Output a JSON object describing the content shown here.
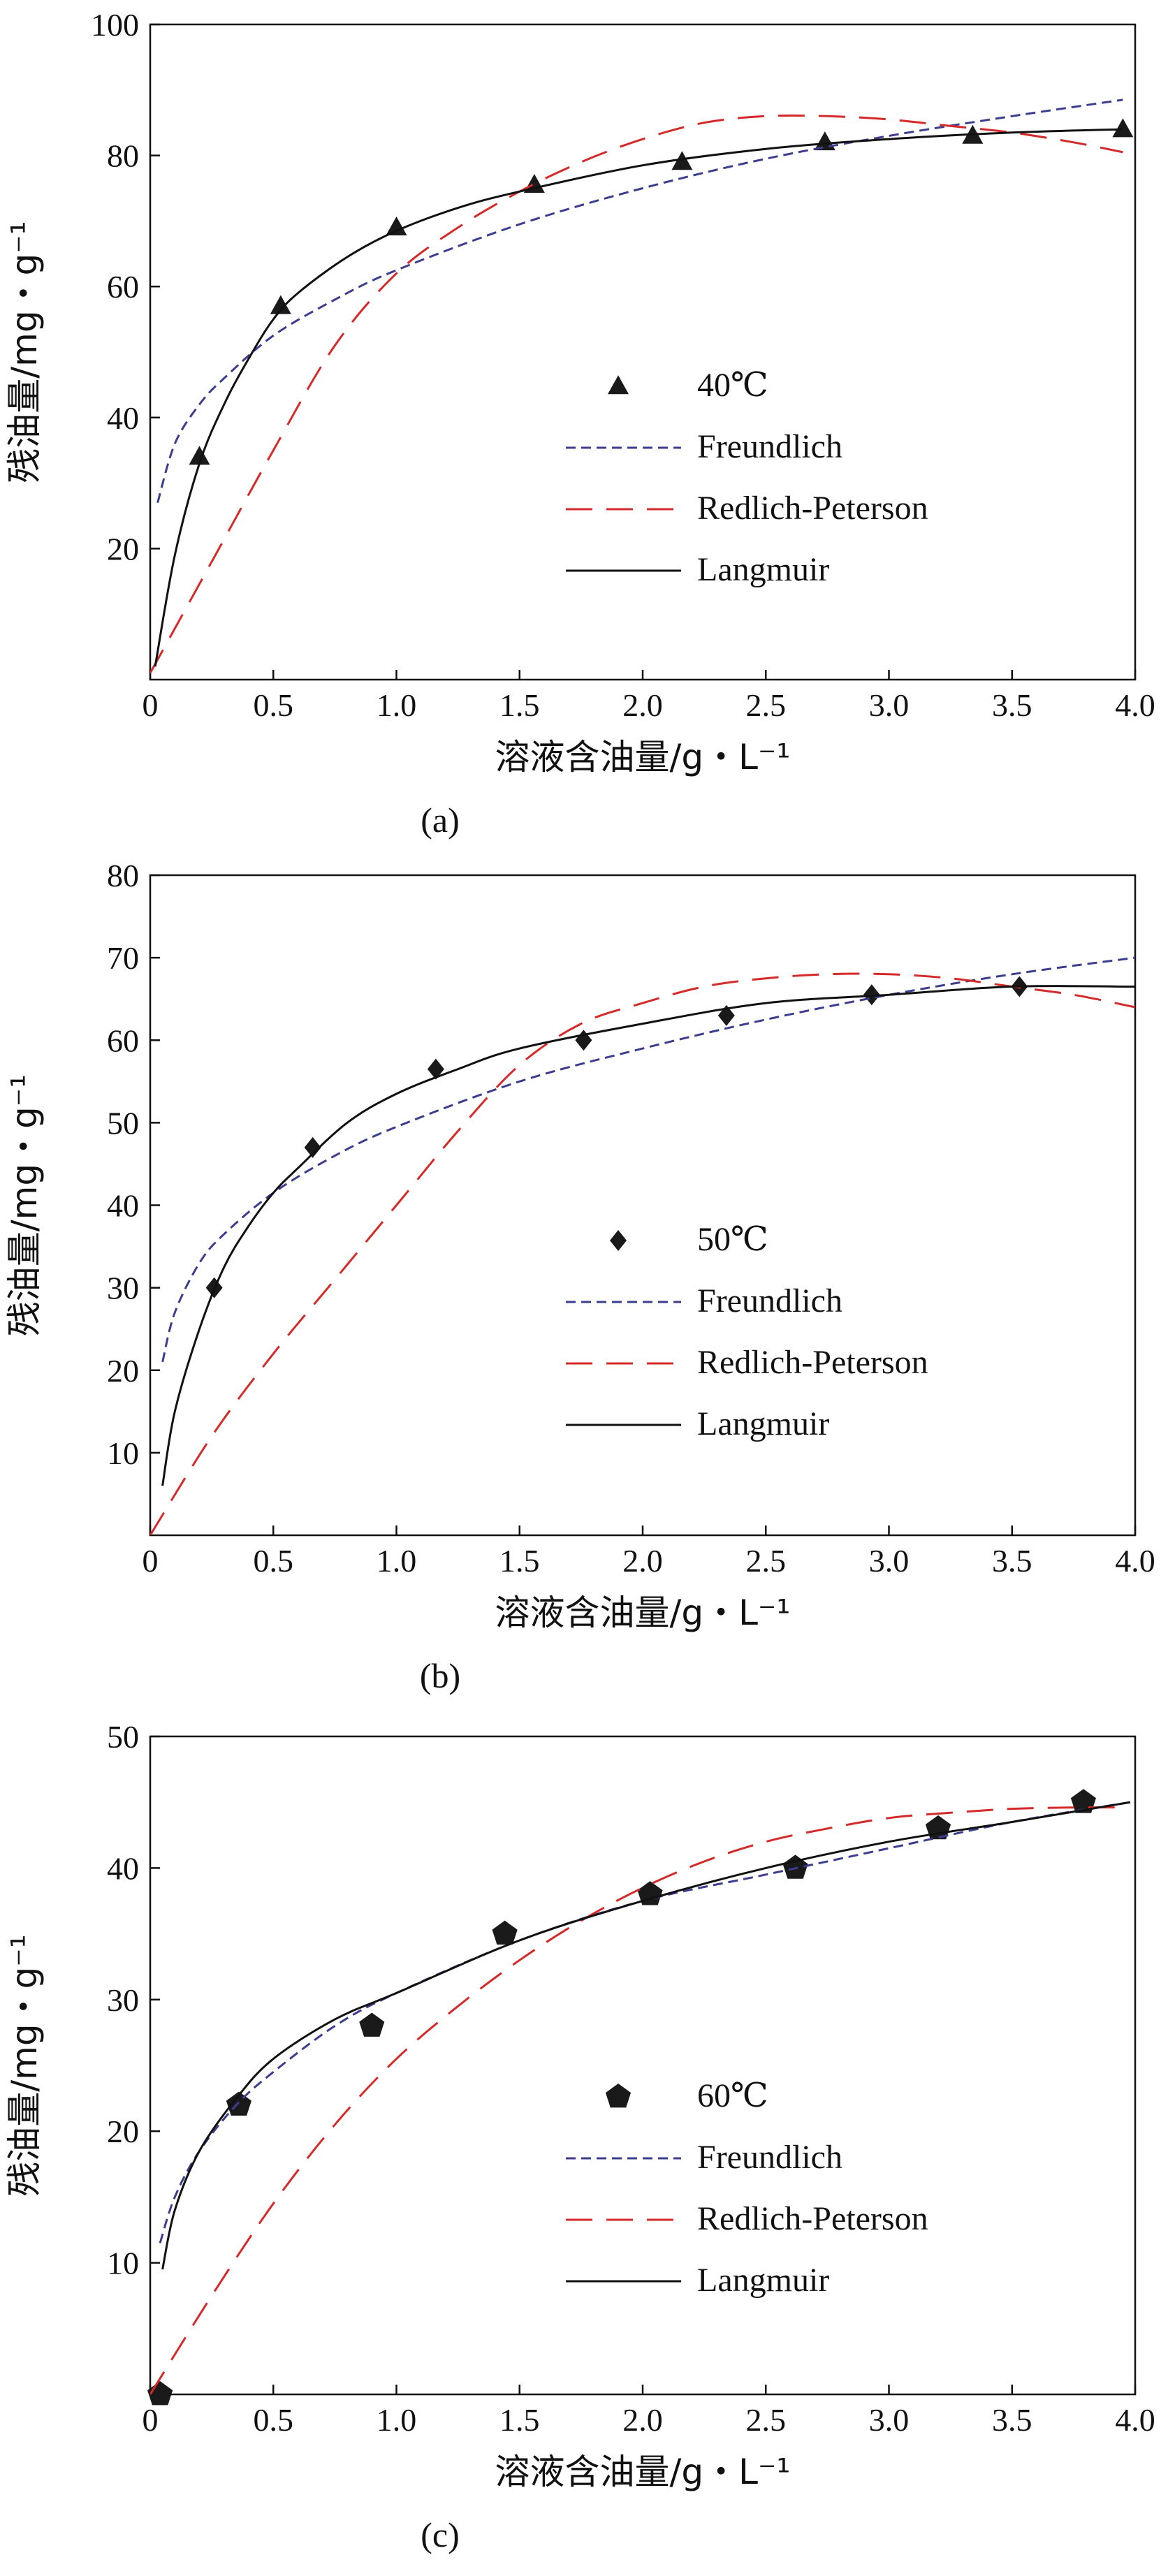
{
  "colors": {
    "freundlich": "#3d3d8f",
    "redlich_peterson": "#d42a2a",
    "langmuir": "#111111",
    "marker": "#1a1a1a",
    "axis": "#111111"
  },
  "chart_data": [
    {
      "type": "scatter",
      "panel_label": "(a)",
      "xlabel": "溶液含油量/g・L⁻¹",
      "ylabel": "残油量/mg・g⁻¹",
      "xlim": [
        0,
        4.0
      ],
      "ylim": [
        0,
        100
      ],
      "xticks": [
        0,
        0.5,
        1.0,
        1.5,
        2.0,
        2.5,
        3.0,
        3.5,
        4.0
      ],
      "xtick_labels": [
        "0",
        "0.5",
        "1.0",
        "1.5",
        "2.0",
        "2.5",
        "3.0",
        "3.5",
        "4.0"
      ],
      "yticks": [
        20,
        40,
        60,
        80,
        100
      ],
      "ytick_labels": [
        "20",
        "40",
        "60",
        "80",
        "100"
      ],
      "grid": false,
      "legend_position": "center-right",
      "marker_shape": "triangle",
      "series": [
        {
          "name": "40℃",
          "kind": "points",
          "x": [
            0.2,
            0.53,
            1.0,
            1.56,
            2.16,
            2.74,
            3.34,
            3.95
          ],
          "y": [
            34,
            57,
            69,
            75.5,
            79,
            82,
            83,
            84
          ]
        },
        {
          "name": "Freundlich",
          "kind": "dashed",
          "x": [
            0.03,
            0.1,
            0.2,
            0.3,
            0.5,
            0.75,
            1.0,
            1.5,
            2.0,
            2.5,
            3.0,
            3.5,
            3.95
          ],
          "y": [
            27,
            36,
            42,
            46,
            52.5,
            58,
            62.5,
            69.5,
            75,
            79.5,
            83,
            86,
            88.5
          ]
        },
        {
          "name": "Redlich-Peterson",
          "kind": "longdash",
          "x": [
            0.0,
            0.25,
            0.5,
            0.75,
            1.0,
            1.25,
            1.5,
            1.75,
            2.0,
            2.25,
            2.5,
            2.75,
            3.0,
            3.25,
            3.5,
            3.75,
            3.95
          ],
          "y": [
            1,
            18,
            35,
            51,
            62,
            69,
            74.5,
            79,
            82.5,
            85,
            86,
            86,
            85.5,
            84.5,
            83.5,
            82,
            80.5
          ]
        },
        {
          "name": "Langmuir",
          "kind": "solid",
          "x": [
            0.02,
            0.1,
            0.2,
            0.3,
            0.4,
            0.5,
            0.6,
            0.8,
            1.0,
            1.25,
            1.5,
            2.0,
            2.5,
            3.0,
            3.5,
            3.95
          ],
          "y": [
            2,
            19,
            33,
            42,
            49,
            55,
            59,
            64.5,
            68.5,
            72,
            74.5,
            78.5,
            81,
            82.5,
            83.5,
            84
          ]
        }
      ]
    },
    {
      "type": "scatter",
      "panel_label": "(b)",
      "xlabel": "溶液含油量/g・L⁻¹",
      "ylabel": "残油量/mg・g⁻¹",
      "xlim": [
        0,
        4.0
      ],
      "ylim": [
        0,
        80
      ],
      "xticks": [
        0,
        0.5,
        1.0,
        1.5,
        2.0,
        2.5,
        3.0,
        3.5,
        4.0
      ],
      "xtick_labels": [
        "0",
        "0.5",
        "1.0",
        "1.5",
        "2.0",
        "2.5",
        "3.0",
        "3.5",
        "4.0"
      ],
      "yticks": [
        10,
        20,
        30,
        40,
        50,
        60,
        70,
        80
      ],
      "ytick_labels": [
        "10",
        "20",
        "30",
        "40",
        "50",
        "60",
        "70",
        "80"
      ],
      "grid": false,
      "legend_position": "center-right",
      "marker_shape": "diamond",
      "series": [
        {
          "name": "50℃",
          "kind": "points",
          "x": [
            0.26,
            0.66,
            1.16,
            1.76,
            2.34,
            2.93,
            3.53
          ],
          "y": [
            30,
            47,
            56.5,
            60,
            63,
            65.5,
            66.5
          ]
        },
        {
          "name": "Freundlich",
          "kind": "dashed",
          "x": [
            0.05,
            0.1,
            0.2,
            0.3,
            0.5,
            0.75,
            1.0,
            1.5,
            2.0,
            2.5,
            3.0,
            3.5,
            4.0
          ],
          "y": [
            21,
            27,
            33,
            36.5,
            41.5,
            46,
            49.5,
            55,
            59,
            62.5,
            65.5,
            68,
            70
          ]
        },
        {
          "name": "Redlich-Peterson",
          "kind": "longdash",
          "x": [
            0.0,
            0.25,
            0.5,
            0.75,
            1.0,
            1.25,
            1.5,
            1.75,
            2.0,
            2.25,
            2.5,
            2.75,
            3.0,
            3.25,
            3.5,
            3.75,
            4.0
          ],
          "y": [
            0,
            12,
            22,
            31,
            40,
            49,
            57,
            62,
            64.5,
            66.5,
            67.5,
            68,
            68,
            67.5,
            66.5,
            65.5,
            64
          ]
        },
        {
          "name": "Langmuir",
          "kind": "solid",
          "x": [
            0.05,
            0.1,
            0.2,
            0.3,
            0.4,
            0.5,
            0.6,
            0.8,
            1.0,
            1.25,
            1.5,
            2.0,
            2.5,
            3.0,
            3.5,
            4.0
          ],
          "y": [
            6,
            15,
            25,
            32.5,
            37.5,
            41.5,
            44.5,
            50,
            53.5,
            56.5,
            59,
            62,
            64.5,
            65.5,
            66.5,
            66.5
          ]
        }
      ]
    },
    {
      "type": "scatter",
      "panel_label": "(c)",
      "xlabel": "溶液含油量/g・L⁻¹",
      "ylabel": "残油量/mg・g⁻¹",
      "xlim": [
        0,
        4.0
      ],
      "ylim": [
        0,
        50
      ],
      "xticks": [
        0,
        0.5,
        1.0,
        1.5,
        2.0,
        2.5,
        3.0,
        3.5,
        4.0
      ],
      "xtick_labels": [
        "0",
        "0.5",
        "1.0",
        "1.5",
        "2.0",
        "2.5",
        "3.0",
        "3.5",
        "4.0"
      ],
      "yticks": [
        10,
        20,
        30,
        40,
        50
      ],
      "ytick_labels": [
        "10",
        "20",
        "30",
        "40",
        "50"
      ],
      "grid": false,
      "legend_position": "center-right",
      "marker_shape": "pentagon",
      "series": [
        {
          "name": "60℃",
          "kind": "points",
          "x": [
            0.04,
            0.36,
            0.9,
            1.44,
            2.03,
            2.62,
            3.2,
            3.79
          ],
          "y": [
            0,
            22,
            28,
            35,
            38,
            40,
            43,
            45
          ]
        },
        {
          "name": "Freundlich",
          "kind": "dashed",
          "x": [
            0.04,
            0.1,
            0.2,
            0.35,
            0.5,
            0.75,
            1.0,
            1.5,
            2.0,
            2.5,
            3.0,
            3.5,
            3.98
          ],
          "y": [
            11.5,
            15,
            18.5,
            22,
            24.5,
            28,
            30.5,
            34.5,
            37.5,
            39.5,
            41.5,
            43.5,
            45
          ]
        },
        {
          "name": "Redlich-Peterson",
          "kind": "longdash",
          "x": [
            0.0,
            0.25,
            0.5,
            0.75,
            1.0,
            1.25,
            1.5,
            1.75,
            2.0,
            2.25,
            2.5,
            2.75,
            3.0,
            3.25,
            3.5,
            3.75,
            3.95
          ],
          "y": [
            0,
            7.5,
            14.5,
            20.5,
            25.5,
            29.5,
            33,
            36,
            38.5,
            40.5,
            42,
            43,
            43.8,
            44.2,
            44.5,
            44.6,
            44.6
          ]
        },
        {
          "name": "Langmuir",
          "kind": "solid",
          "x": [
            0.05,
            0.1,
            0.2,
            0.35,
            0.5,
            0.75,
            1.0,
            1.5,
            2.0,
            2.5,
            3.0,
            3.5,
            3.98
          ],
          "y": [
            9.5,
            14,
            18.5,
            22.5,
            25.5,
            28.5,
            30.5,
            34.5,
            37.5,
            40,
            42,
            43.5,
            45
          ]
        }
      ]
    }
  ]
}
